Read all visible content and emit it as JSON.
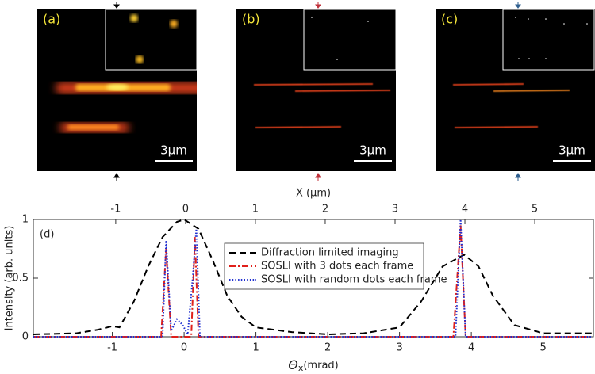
{
  "panels": [
    {
      "label": "(a)",
      "scale_bar": "3μm"
    },
    {
      "label": "(b)",
      "scale_bar": "3μm"
    },
    {
      "label": "(c)",
      "scale_bar": "3μm"
    }
  ],
  "chart_data": {
    "type": "line",
    "panel_label": "(d)",
    "xlabel": {
      "symbol": "Θ",
      "subscript": "x",
      "unit": "(mrad)"
    },
    "ylabel": "Intensity (arb. units)",
    "x2label": "X (μm)",
    "xlim": [
      -2.1,
      5.7
    ],
    "xticks": [
      -1,
      0,
      1,
      2,
      3,
      4,
      5
    ],
    "x2lim": [
      -2.18,
      5.84
    ],
    "x2ticks": [
      -1,
      0,
      1,
      2,
      3,
      4,
      5
    ],
    "ylim": [
      0,
      1
    ],
    "yticks": [
      0,
      0.5,
      1
    ],
    "legend": "upper center",
    "series": [
      {
        "name": "Diffraction limited imaging",
        "color": "#000000",
        "style": "dashed",
        "x": [
          -2.1,
          -1.5,
          -1.2,
          -1.0,
          -0.9,
          -0.7,
          -0.5,
          -0.3,
          -0.1,
          0.0,
          0.2,
          0.4,
          0.6,
          0.8,
          1.0,
          1.5,
          2.0,
          2.5,
          3.0,
          3.3,
          3.6,
          3.9,
          4.1,
          4.3,
          4.6,
          5.0,
          5.7
        ],
        "values": [
          0.02,
          0.03,
          0.06,
          0.09,
          0.08,
          0.3,
          0.6,
          0.85,
          0.98,
          1.0,
          0.92,
          0.65,
          0.35,
          0.17,
          0.08,
          0.04,
          0.02,
          0.03,
          0.08,
          0.3,
          0.6,
          0.7,
          0.6,
          0.35,
          0.1,
          0.03,
          0.03
        ]
      },
      {
        "name": "SOSLI with 3 dots each frame",
        "color": "#e0201b",
        "style": "dashdot",
        "x": [
          -2.1,
          -0.32,
          -0.25,
          -0.18,
          -0.05,
          0.05,
          0.1,
          0.15,
          0.2,
          3.75,
          3.85,
          3.92,
          5.7
        ],
        "values": [
          0,
          0,
          0.75,
          0,
          0,
          0,
          0,
          0.85,
          0,
          0,
          0.95,
          0,
          0
        ]
      },
      {
        "name": "SOSLI with random dots each frame",
        "color": "#1f2fd0",
        "style": "dotted",
        "x": [
          -2.1,
          -0.3,
          -0.25,
          -0.18,
          -0.1,
          -0.02,
          0.05,
          0.12,
          0.17,
          0.22,
          3.78,
          3.85,
          3.92,
          5.7
        ],
        "values": [
          0,
          0,
          0.82,
          0.05,
          0.15,
          0.1,
          0.02,
          0.5,
          0.92,
          0,
          0,
          1.0,
          0,
          0
        ]
      }
    ]
  }
}
